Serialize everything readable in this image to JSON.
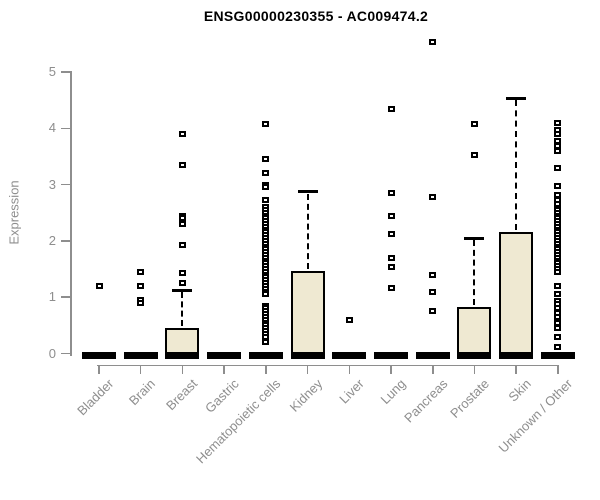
{
  "page": {
    "background": "#ffffff"
  },
  "chart_data": {
    "type": "boxplot",
    "title": "ENSG00000230355 - AC009474.2",
    "ylabel": "Expression",
    "xlabel": "",
    "ylim": [
      0,
      5.6
    ],
    "yticks": [
      0,
      1,
      2,
      3,
      4,
      5
    ],
    "grid": false,
    "legend": null,
    "categories": [
      "Bladder",
      "Brain",
      "Breast",
      "Gastric",
      "Hematopoietic cells",
      "Kidney",
      "Liver",
      "Lung",
      "Pancreas",
      "Prostate",
      "Skin",
      "Unknown / Other"
    ],
    "boxes": [
      {
        "category": "Bladder",
        "q1": 0,
        "median": 0,
        "q3": 0,
        "whisker_low": 0,
        "whisker_high": 0,
        "outliers": [
          1.2
        ]
      },
      {
        "category": "Brain",
        "q1": 0,
        "median": 0,
        "q3": 0,
        "whisker_low": 0,
        "whisker_high": 0,
        "outliers": [
          1.45,
          1.2,
          0.95,
          0.9
        ]
      },
      {
        "category": "Breast",
        "q1": 0,
        "median": 0,
        "q3": 0.46,
        "whisker_low": 0,
        "whisker_high": 1.12,
        "outliers": [
          3.9,
          3.35,
          2.45,
          2.4,
          2.3,
          1.93,
          1.43,
          1.26
        ]
      },
      {
        "category": "Gastric",
        "q1": 0,
        "median": 0,
        "q3": 0,
        "whisker_low": 0,
        "whisker_high": 0,
        "outliers": []
      },
      {
        "category": "Hematopoietic cells",
        "q1": 0,
        "median": 0,
        "q3": 0,
        "whisker_low": 0,
        "whisker_high": 0,
        "outliers": [
          4.07,
          3.45,
          3.2,
          3.0,
          2.95,
          2.72,
          2.6,
          2.55,
          2.5,
          2.45,
          2.4,
          2.35,
          2.3,
          2.25,
          2.2,
          2.15,
          2.1,
          2.05,
          2.0,
          1.95,
          1.9,
          1.85,
          1.8,
          1.75,
          1.7,
          1.65,
          1.6,
          1.55,
          1.5,
          1.45,
          1.4,
          1.35,
          1.3,
          1.25,
          1.2,
          1.15,
          1.1,
          1.05,
          0.85,
          0.8,
          0.75,
          0.7,
          0.65,
          0.6,
          0.55,
          0.5,
          0.45,
          0.4,
          0.35,
          0.3,
          0.2
        ]
      },
      {
        "category": "Kidney",
        "q1": 0,
        "median": 0,
        "q3": 1.47,
        "whisker_low": 0,
        "whisker_high": 2.87,
        "outliers": []
      },
      {
        "category": "Liver",
        "q1": 0,
        "median": 0,
        "q3": 0,
        "whisker_low": 0,
        "whisker_high": 0,
        "outliers": [
          0.6
        ]
      },
      {
        "category": "Lung",
        "q1": 0,
        "median": 0,
        "q3": 0,
        "whisker_low": 0,
        "whisker_high": 0,
        "outliers": [
          4.35,
          2.85,
          2.44,
          2.12,
          1.69,
          1.53,
          1.16
        ]
      },
      {
        "category": "Pancreas",
        "q1": 0,
        "median": 0,
        "q3": 0,
        "whisker_low": 0,
        "whisker_high": 0,
        "outliers": [
          5.53,
          2.78,
          1.39,
          1.1,
          0.75
        ]
      },
      {
        "category": "Prostate",
        "q1": 0,
        "median": 0,
        "q3": 0.83,
        "whisker_low": 0,
        "whisker_high": 2.05,
        "outliers": [
          4.08,
          3.52
        ]
      },
      {
        "category": "Skin",
        "q1": 0,
        "median": 0,
        "q3": 2.15,
        "whisker_low": 0,
        "whisker_high": 4.53,
        "outliers": []
      },
      {
        "category": "Unknown / Other",
        "q1": 0,
        "median": 0,
        "q3": 0,
        "whisker_low": 0,
        "whisker_high": 0,
        "outliers": [
          4.1,
          3.97,
          3.9,
          3.78,
          3.68,
          3.6,
          3.3,
          2.97,
          2.82,
          2.72,
          2.65,
          2.55,
          2.5,
          2.45,
          2.4,
          2.35,
          2.3,
          2.25,
          2.2,
          2.15,
          2.1,
          2.05,
          2.0,
          1.95,
          1.9,
          1.85,
          1.8,
          1.75,
          1.7,
          1.65,
          1.6,
          1.55,
          1.5,
          1.45,
          1.2,
          1.05,
          0.93,
          0.88,
          0.8,
          0.72,
          0.65,
          0.55,
          0.45,
          0.3,
          0.12
        ]
      }
    ],
    "colors": {
      "box_fill": "#EFE9D2",
      "box_border": "#000000",
      "whisker": "#000000",
      "outlier_border": "#000000",
      "outlier_fill": "#ffffff",
      "axis": "#8E8E8E",
      "tick_label": "#8E8E8E",
      "title": "#000000"
    }
  }
}
